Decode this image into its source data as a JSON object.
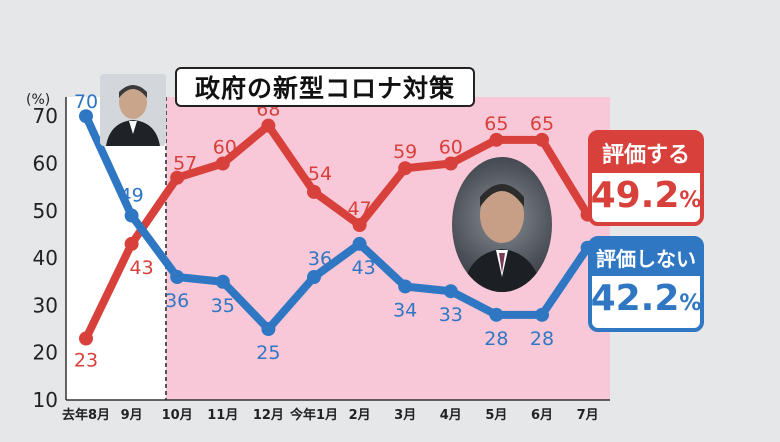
{
  "title": "政府の新型コロナ対策",
  "unit_label": "(%)",
  "legend": {
    "approve": {
      "label": "評価する",
      "value": "49.2",
      "unit": "%"
    },
    "disapprove": {
      "label": "評価しない",
      "value": "42.2",
      "unit": "%"
    }
  },
  "colors": {
    "approve": "#d8403b",
    "disapprove": "#2f77c3",
    "plot_bg_pink": "#f9c8d8",
    "plot_bg_white": "#ffffff"
  },
  "chart_data": {
    "type": "line",
    "categories": [
      "去年8月",
      "9月",
      "10月",
      "11月",
      "12月",
      "今年1月",
      "2月",
      "3月",
      "4月",
      "5月",
      "6月",
      "7月"
    ],
    "series": [
      {
        "name": "評価する",
        "values": [
          23,
          43,
          57,
          60,
          68,
          54,
          47,
          59,
          60,
          65,
          65,
          49.2
        ],
        "labels": [
          "23",
          "43",
          "57",
          "60",
          "68",
          "54",
          "47",
          "59",
          "60",
          "65",
          "65",
          ""
        ]
      },
      {
        "name": "評価しない",
        "values": [
          70,
          49,
          36,
          35,
          25,
          36,
          43,
          34,
          33,
          28,
          28,
          42.2
        ],
        "labels": [
          "70",
          "49",
          "36",
          "35",
          "25",
          "36",
          "43",
          "34",
          "33",
          "28",
          "28",
          ""
        ]
      }
    ],
    "yticks": [
      10,
      20,
      30,
      40,
      50,
      60,
      70
    ],
    "ylim": [
      10,
      75
    ],
    "grid": false
  }
}
